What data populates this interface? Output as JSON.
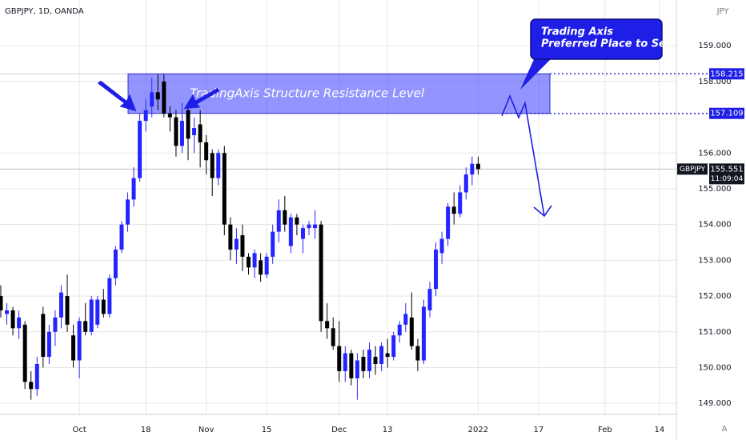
{
  "chart_data": {
    "type": "candlestick",
    "title": "GBPJPY, 1D, OANDA",
    "currency": "JPY",
    "x": [
      0,
      1,
      2,
      3,
      4,
      5,
      6,
      7,
      8,
      9,
      10,
      11,
      12,
      13,
      14,
      15,
      16,
      17,
      18,
      19,
      20,
      21,
      22,
      23,
      24,
      25,
      26,
      27,
      28,
      29,
      30,
      31,
      32,
      33,
      34,
      35,
      36,
      37,
      38,
      39,
      40,
      41,
      42,
      43,
      44,
      45,
      46,
      47,
      48,
      49,
      50,
      51,
      52,
      53,
      54,
      55,
      56,
      57,
      58,
      59,
      60,
      61,
      62,
      63,
      64,
      65,
      66,
      67,
      68,
      69,
      70,
      71,
      72,
      73,
      74,
      75,
      76,
      77,
      78,
      79
    ],
    "open": [
      152.0,
      151.5,
      151.6,
      151.1,
      151.2,
      149.6,
      149.4,
      151.5,
      150.3,
      151.0,
      151.4,
      152.0,
      150.9,
      150.2,
      151.3,
      151.0,
      151.2,
      151.9,
      151.5,
      152.5,
      153.3,
      154.0,
      154.7,
      155.3,
      156.9,
      157.3,
      157.7,
      158.0,
      157.1,
      157.0,
      156.2,
      157.2,
      156.5,
      156.8,
      156.3,
      156.0,
      155.3,
      156.0,
      154.0,
      153.3,
      153.7,
      153.1,
      152.8,
      153.0,
      152.6,
      153.1,
      153.8,
      154.4,
      153.4,
      154.2,
      153.6,
      153.9,
      153.9,
      154.0,
      151.3,
      151.1,
      150.6,
      149.9,
      150.4,
      149.7,
      150.3,
      149.9,
      150.3,
      150.1,
      150.4,
      150.3,
      150.9,
      151.2,
      151.4,
      150.6,
      150.2,
      151.6,
      152.2,
      153.2,
      153.6,
      154.5,
      154.3,
      154.9,
      155.4,
      155.7
    ],
    "high": [
      152.3,
      151.8,
      151.7,
      151.6,
      151.3,
      149.9,
      150.3,
      151.7,
      151.2,
      151.6,
      152.3,
      152.6,
      151.2,
      151.4,
      151.8,
      152.0,
      152.0,
      152.2,
      152.6,
      153.4,
      154.1,
      154.9,
      155.6,
      157.1,
      157.5,
      158.1,
      158.2,
      158.2,
      157.3,
      157.2,
      157.4,
      157.3,
      157.0,
      157.2,
      156.5,
      156.1,
      156.1,
      156.2,
      154.2,
      153.9,
      154.0,
      153.2,
      153.3,
      153.2,
      153.2,
      154.0,
      154.7,
      154.8,
      154.3,
      154.3,
      154.0,
      154.1,
      154.4,
      154.1,
      151.8,
      151.4,
      151.3,
      150.6,
      150.5,
      150.4,
      150.5,
      150.7,
      150.6,
      150.7,
      150.8,
      151.0,
      151.3,
      151.8,
      152.1,
      150.8,
      151.9,
      152.4,
      153.5,
      153.8,
      154.6,
      154.9,
      155.1,
      155.6,
      155.9,
      155.9
    ],
    "low": [
      151.4,
      151.2,
      150.9,
      150.8,
      149.4,
      149.1,
      149.2,
      150.0,
      150.1,
      150.6,
      151.1,
      151.0,
      150.0,
      149.7,
      150.9,
      150.9,
      151.1,
      151.4,
      151.4,
      152.3,
      153.2,
      153.8,
      154.5,
      155.2,
      156.6,
      157.0,
      157.2,
      157.0,
      156.6,
      155.9,
      156.0,
      155.8,
      156.0,
      155.6,
      155.4,
      154.8,
      155.1,
      153.7,
      153.0,
      152.9,
      152.7,
      152.6,
      152.5,
      152.4,
      152.5,
      152.9,
      153.5,
      153.8,
      153.2,
      153.7,
      153.2,
      153.7,
      153.6,
      151.0,
      150.8,
      150.5,
      149.6,
      149.6,
      149.5,
      149.1,
      149.7,
      149.7,
      149.8,
      149.9,
      150.0,
      150.2,
      150.7,
      151.0,
      150.5,
      149.9,
      150.1,
      151.4,
      152.0,
      152.9,
      153.4,
      154.0,
      154.2,
      154.7,
      155.1,
      155.4
    ],
    "close": [
      151.6,
      151.6,
      151.1,
      151.4,
      149.6,
      149.4,
      150.1,
      150.3,
      151.0,
      151.4,
      152.1,
      151.2,
      150.2,
      151.3,
      151.0,
      151.9,
      151.9,
      151.5,
      152.5,
      153.3,
      154.0,
      154.7,
      155.3,
      156.9,
      157.2,
      157.7,
      157.5,
      157.1,
      157.0,
      156.2,
      156.9,
      156.4,
      156.7,
      156.3,
      155.8,
      155.3,
      156.0,
      154.0,
      153.3,
      153.6,
      153.1,
      152.8,
      153.2,
      152.6,
      153.1,
      153.8,
      154.4,
      154.0,
      154.2,
      154.0,
      153.9,
      154.0,
      154.0,
      151.3,
      151.1,
      150.6,
      149.9,
      150.4,
      149.7,
      150.2,
      149.9,
      150.5,
      150.1,
      150.6,
      150.3,
      150.9,
      151.2,
      151.5,
      150.6,
      150.2,
      151.7,
      152.2,
      153.3,
      153.6,
      154.5,
      154.3,
      154.9,
      155.4,
      155.7,
      155.551
    ],
    "up_color": "#2424ff",
    "down_color": "#000000",
    "xlim": [
      -0.13,
      111.8
    ],
    "xticks": [
      {
        "value": 13,
        "label": "Oct"
      },
      {
        "value": 24,
        "label": "18"
      },
      {
        "value": 34,
        "label": "Nov"
      },
      {
        "value": 44,
        "label": "15"
      },
      {
        "value": 56,
        "label": "Dec"
      },
      {
        "value": 64,
        "label": "13"
      },
      {
        "value": 79,
        "label": "2022"
      },
      {
        "value": 89,
        "label": "17"
      },
      {
        "value": 100,
        "label": "Feb"
      },
      {
        "value": 109,
        "label": "14"
      }
    ],
    "ylim": [
      148.69,
      160.28
    ],
    "yticks": [
      {
        "value": 149,
        "label": "149.000"
      },
      {
        "value": 150,
        "label": "150.000"
      },
      {
        "value": 151,
        "label": "151.000"
      },
      {
        "value": 152,
        "label": "152.000"
      },
      {
        "value": 153,
        "label": "153.000"
      },
      {
        "value": 154,
        "label": "154.000"
      },
      {
        "value": 155,
        "label": "155.000"
      },
      {
        "value": 156,
        "label": "156.000"
      },
      {
        "value": 158,
        "label": "158.000"
      },
      {
        "value": 159,
        "label": "159.000"
      }
    ],
    "grid": true,
    "levels": [
      158.215,
      157.109
    ],
    "zone_label": "TradingAxis Structure Resistance Level",
    "callout": [
      "Trading Axis",
      "Preferred Place to Sell"
    ],
    "symbol": "GBPJPY",
    "countdown": "11:09:04",
    "scale_mode": "A"
  }
}
